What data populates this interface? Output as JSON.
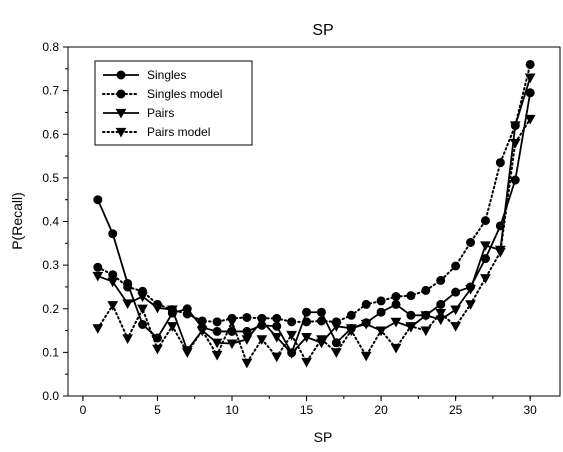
{
  "chart_data": {
    "type": "line",
    "title": "SP",
    "xlabel": "SP",
    "ylabel": "P(Recall)",
    "xlim": [
      -1,
      32
    ],
    "ylim": [
      0,
      0.8
    ],
    "xticks": [
      0,
      5,
      10,
      15,
      20,
      25,
      30
    ],
    "yticks": [
      0.0,
      0.1,
      0.2,
      0.3,
      0.4,
      0.5,
      0.6,
      0.7,
      0.8
    ],
    "ytick_labels": [
      "0.0",
      "0.1",
      "0.2",
      "0.3",
      "0.4",
      "0.5",
      "0.6",
      "0.7",
      "0.8"
    ],
    "grid": false,
    "legend_position": "top-left",
    "x": [
      1,
      2,
      3,
      4,
      5,
      6,
      7,
      8,
      9,
      10,
      11,
      12,
      13,
      14,
      15,
      16,
      17,
      18,
      19,
      20,
      21,
      22,
      23,
      24,
      25,
      26,
      27,
      28,
      29,
      30
    ],
    "series": [
      {
        "name": "Singles",
        "style": "solid",
        "marker": "circle",
        "values": [
          0.45,
          0.372,
          0.258,
          0.164,
          0.133,
          0.19,
          0.2,
          0.157,
          0.148,
          0.148,
          0.148,
          0.162,
          0.16,
          0.099,
          0.192,
          0.192,
          0.122,
          0.155,
          0.168,
          0.192,
          0.21,
          0.185,
          0.185,
          0.21,
          0.238,
          0.25,
          0.315,
          0.39,
          0.495,
          0.695
        ]
      },
      {
        "name": "Singles model",
        "style": "dotted",
        "marker": "circle",
        "values": [
          0.295,
          0.278,
          0.25,
          0.24,
          0.21,
          0.198,
          0.188,
          0.172,
          0.17,
          0.178,
          0.18,
          0.178,
          0.178,
          0.17,
          0.17,
          0.172,
          0.17,
          0.185,
          0.21,
          0.218,
          0.228,
          0.23,
          0.242,
          0.265,
          0.298,
          0.352,
          0.402,
          0.535,
          0.62,
          0.76
        ]
      },
      {
        "name": "Pairs",
        "style": "solid",
        "marker": "triangle",
        "values": [
          0.275,
          0.262,
          0.212,
          0.228,
          0.202,
          0.198,
          0.105,
          0.15,
          0.122,
          0.12,
          0.13,
          0.172,
          0.135,
          0.098,
          0.135,
          0.122,
          0.16,
          0.155,
          0.165,
          0.15,
          0.17,
          0.158,
          0.185,
          0.175,
          0.198,
          0.245,
          0.345,
          0.335,
          0.62,
          0.73
        ]
      },
      {
        "name": "Pairs model",
        "style": "dotted",
        "marker": "triangle",
        "values": [
          0.155,
          0.208,
          0.132,
          0.2,
          0.108,
          0.16,
          0.1,
          0.15,
          0.094,
          0.17,
          0.076,
          0.13,
          0.09,
          0.14,
          0.078,
          0.13,
          0.1,
          0.15,
          0.092,
          0.15,
          0.11,
          0.16,
          0.15,
          0.19,
          0.16,
          0.21,
          0.27,
          0.33,
          0.58,
          0.635
        ]
      }
    ]
  }
}
